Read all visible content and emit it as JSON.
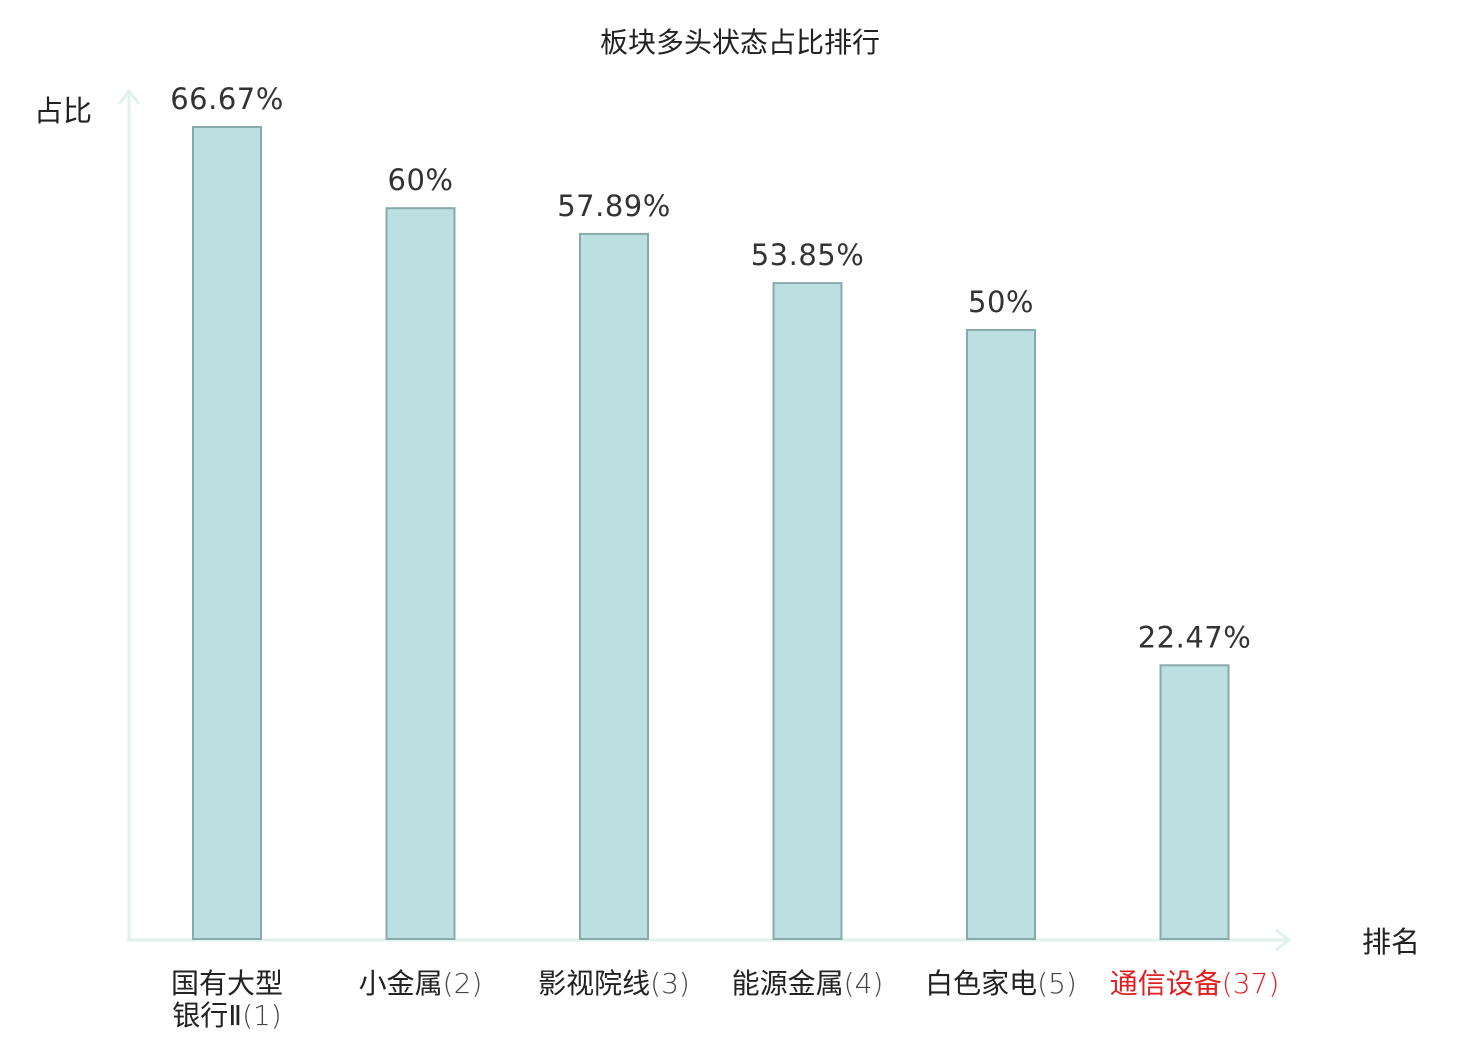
{
  "chart_data": {
    "type": "bar",
    "title": "板块多头状态占比排行",
    "ylabel": "占比",
    "xlabel": "排名",
    "ylim": [
      0,
      75
    ],
    "grid": false,
    "categories": [
      {
        "name_lines": [
          "国有大型",
          "银行Ⅱ"
        ],
        "rank": "(1)",
        "highlight": false
      },
      {
        "name_lines": [
          "小金属"
        ],
        "rank": "(2)",
        "highlight": false
      },
      {
        "name_lines": [
          "影视院线"
        ],
        "rank": "(3)",
        "highlight": false
      },
      {
        "name_lines": [
          "能源金属"
        ],
        "rank": "(4)",
        "highlight": false
      },
      {
        "name_lines": [
          "白色家电"
        ],
        "rank": "(5)",
        "highlight": false
      },
      {
        "name_lines": [
          "通信设备"
        ],
        "rank": "(37)",
        "highlight": true
      }
    ],
    "values": [
      66.67,
      60,
      57.89,
      53.85,
      50,
      22.47
    ],
    "value_labels": [
      "66.67%",
      "60%",
      "57.89%",
      "53.85%",
      "50%",
      "22.47%"
    ]
  },
  "colors": {
    "bar_fill": "#bce0e2",
    "bar_stroke": "#8aa9aa",
    "axis": "#e0f1ee",
    "highlight_text": "#e02020",
    "text": "#222222"
  }
}
